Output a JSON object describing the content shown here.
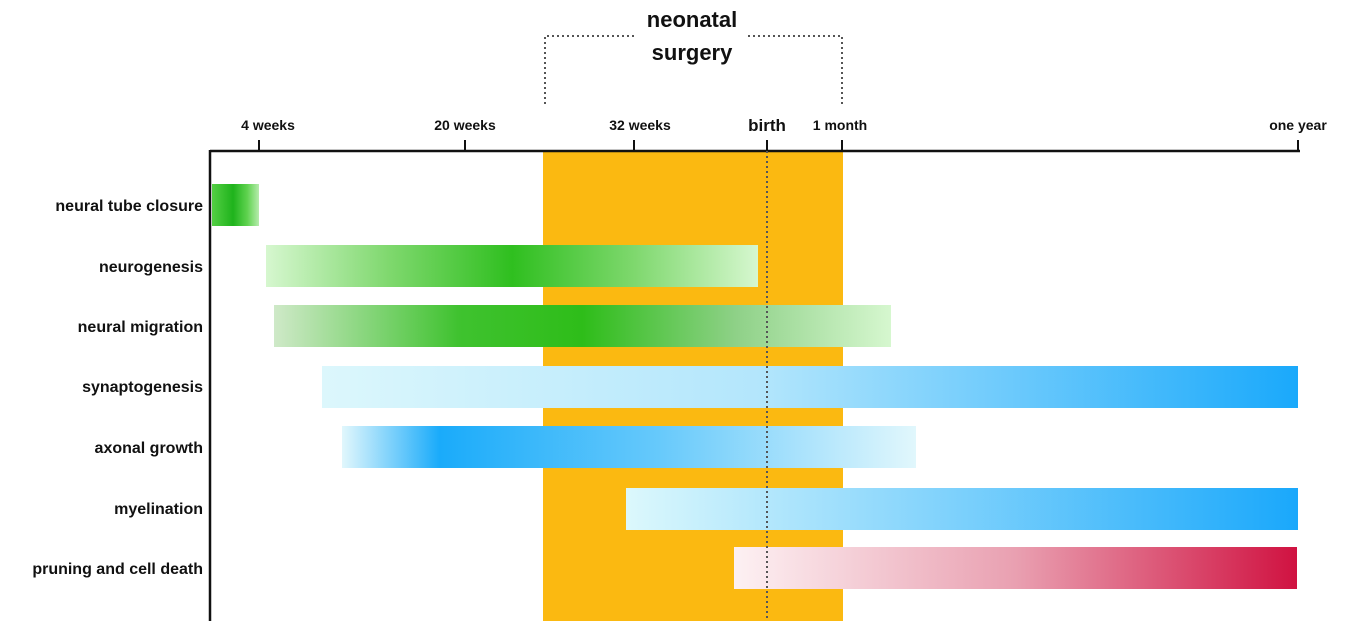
{
  "surgery": {
    "label_line1": "neonatal",
    "label_line2": "surgery"
  },
  "timeline": {
    "ticks": [
      {
        "label": "4 weeks"
      },
      {
        "label": "20 weeks"
      },
      {
        "label": "32 weeks"
      },
      {
        "label": "birth"
      },
      {
        "label": "1 month"
      },
      {
        "label": "one year"
      }
    ]
  },
  "processes": [
    {
      "label": "neural tube closure",
      "color_family": "green",
      "colors": [
        "#2fbf2a",
        "#b6ecad"
      ]
    },
    {
      "label": "neurogenesis",
      "color_family": "green",
      "colors": [
        "#d6f7cf",
        "#2fbf1f",
        "#d6f7cf"
      ]
    },
    {
      "label": "neural migration",
      "color_family": "green",
      "colors": [
        "#cfe9c8",
        "#2ebd19",
        "#d6f7cf"
      ]
    },
    {
      "label": "synaptogenesis",
      "color_family": "blue",
      "colors": [
        "#dcf7fc",
        "#1aa9fb"
      ]
    },
    {
      "label": "axonal growth",
      "color_family": "blue",
      "colors": [
        "#e1f7fc",
        "#1aabfa",
        "#e1f7fc"
      ]
    },
    {
      "label": "myelination",
      "color_family": "blue",
      "colors": [
        "#dcf8fc",
        "#1aa8fb"
      ]
    },
    {
      "label": "pruning and cell death",
      "color_family": "red",
      "colors": [
        "#fdf1f3",
        "#d01241"
      ]
    }
  ],
  "colors": {
    "surgery_band": "#fbb911",
    "axis": "#111111",
    "green": "#2fbf1f",
    "blue": "#1aa8fb",
    "red": "#d01241"
  }
}
